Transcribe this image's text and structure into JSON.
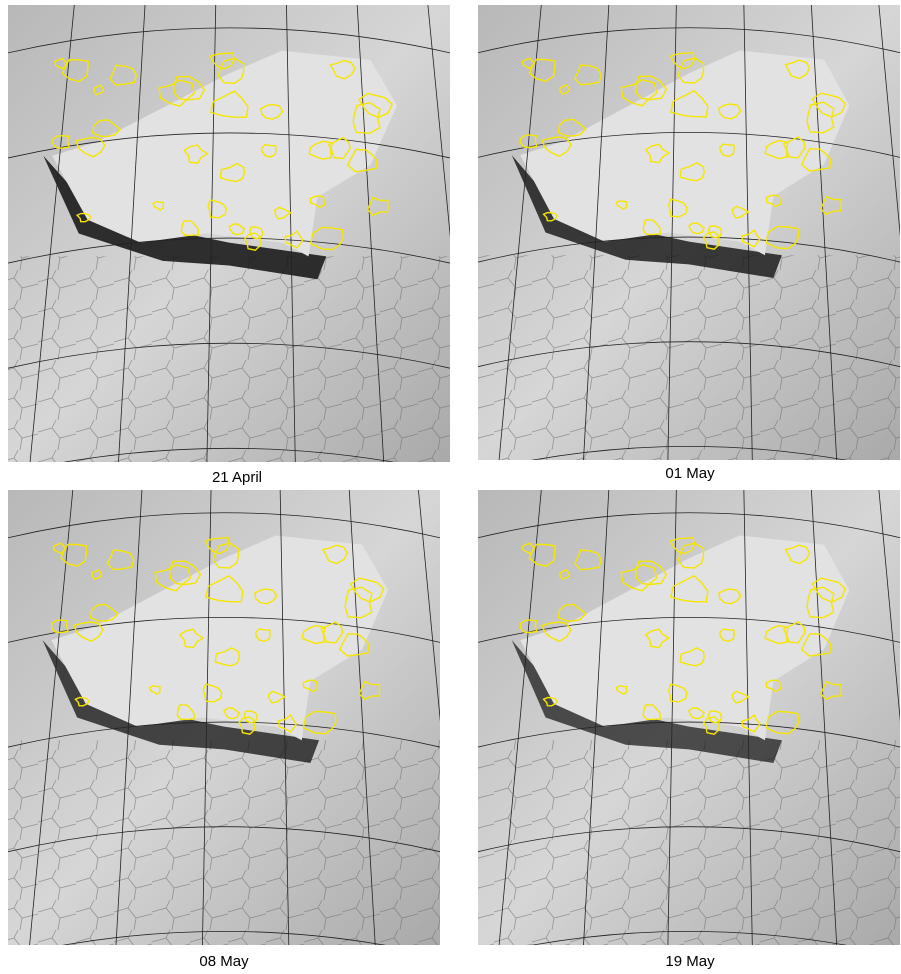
{
  "panels": [
    {
      "caption": "21 April"
    },
    {
      "caption": "01 May"
    },
    {
      "caption": "08 May"
    },
    {
      "caption": "19 May"
    }
  ]
}
